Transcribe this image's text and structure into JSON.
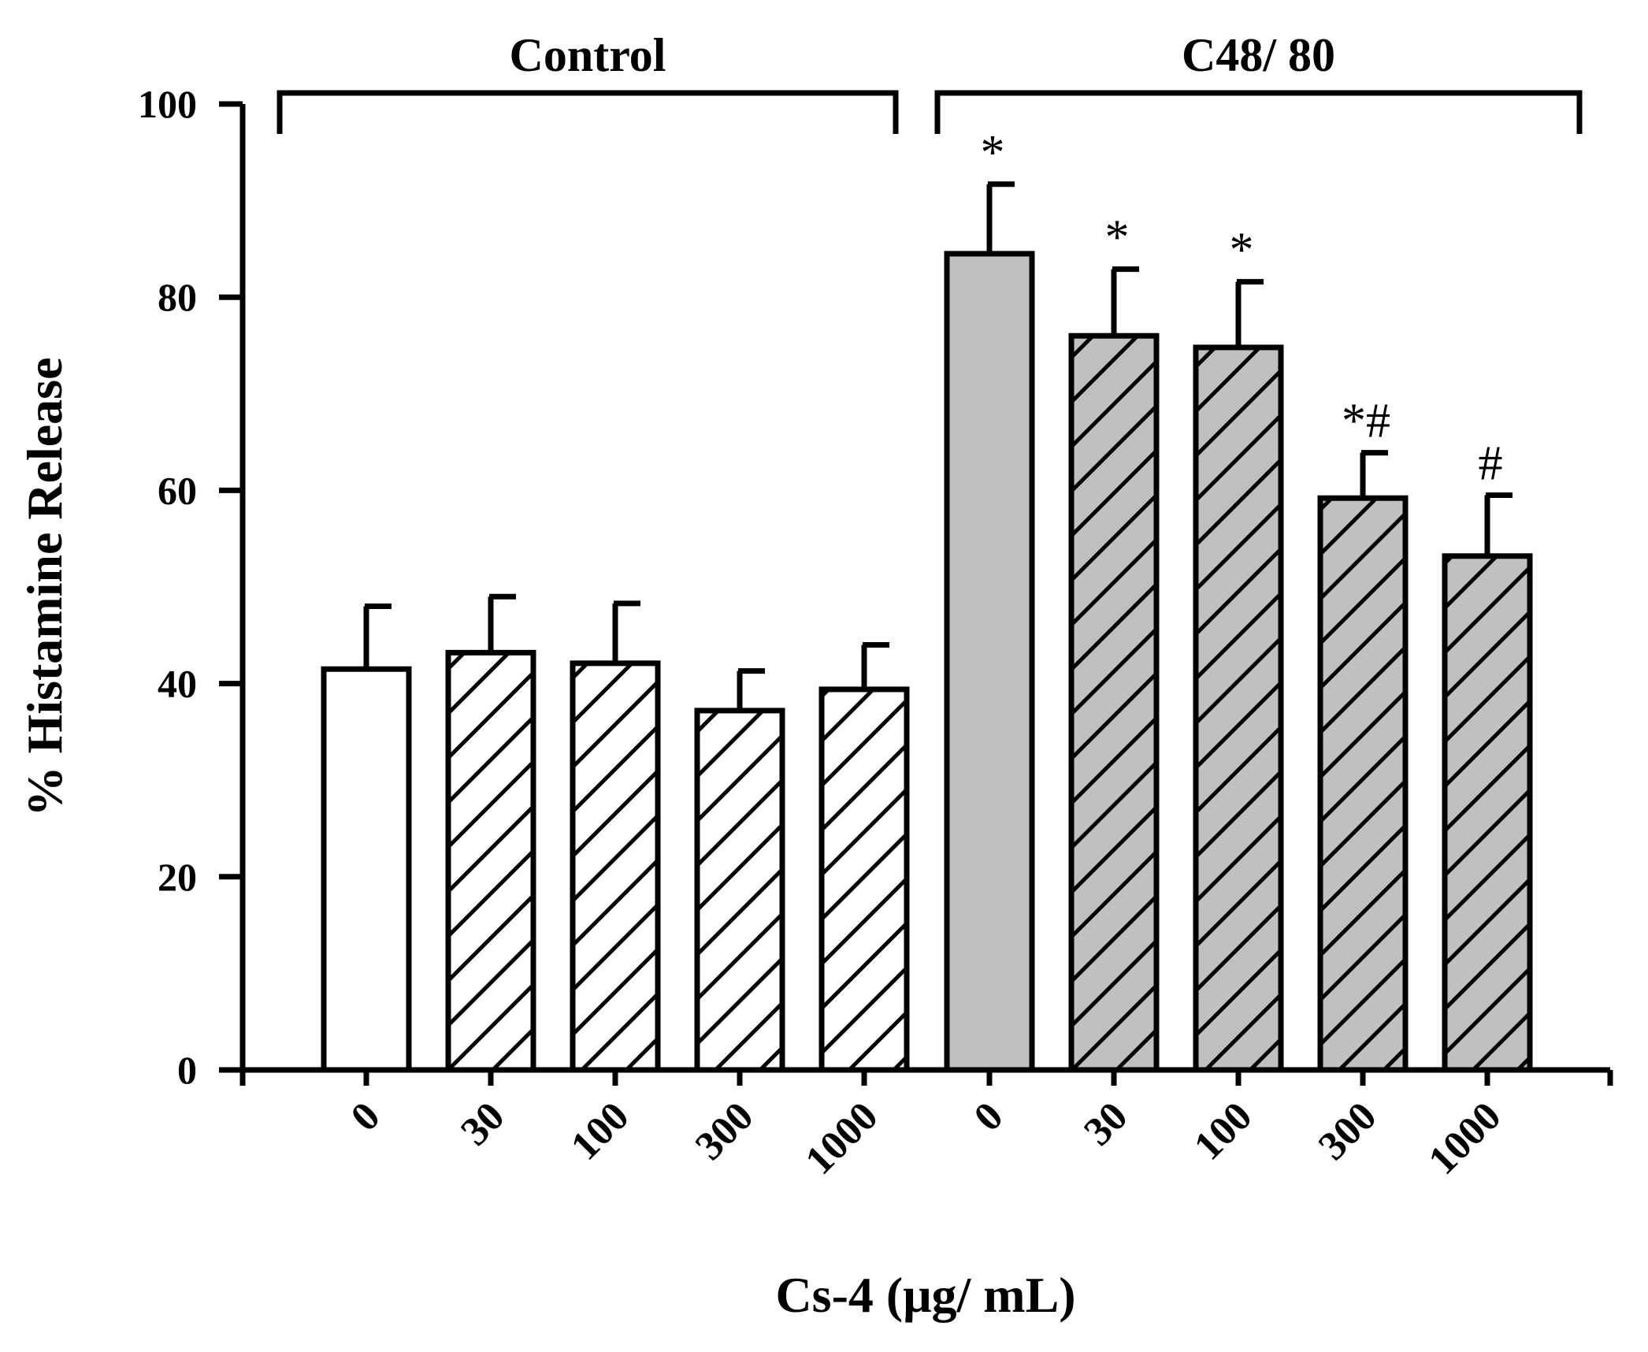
{
  "chart_data": {
    "type": "bar",
    "title": "",
    "xlabel": "Cs-4 (μg/ mL)",
    "ylabel": "% Histamine Release",
    "ylim": [
      0,
      100
    ],
    "yticks": [
      "0",
      "20",
      "40",
      "60",
      "80",
      "100"
    ],
    "groups": [
      {
        "label": "Control",
        "bar_indices": [
          0,
          1,
          2,
          3,
          4
        ]
      },
      {
        "label": "C48/ 80",
        "bar_indices": [
          5,
          6,
          7,
          8,
          9
        ]
      }
    ],
    "categories": [
      "0",
      "30",
      "100",
      "300",
      "1000",
      "0",
      "30",
      "100",
      "300",
      "1000"
    ],
    "values": [
      41.5,
      43.2,
      42.1,
      37.2,
      39.4,
      84.5,
      76.0,
      74.8,
      59.2,
      53.2
    ],
    "errors": [
      6.5,
      5.8,
      6.2,
      4.1,
      4.6,
      7.2,
      6.9,
      6.8,
      4.7,
      6.3
    ],
    "fills": [
      "white",
      "hatch-white",
      "hatch-white",
      "hatch-white",
      "hatch-white",
      "gray",
      "hatch-gray",
      "hatch-gray",
      "hatch-gray",
      "hatch-gray"
    ],
    "significance": [
      "",
      "",
      "",
      "",
      "",
      "*",
      "*",
      "*",
      "*#",
      "#"
    ],
    "colors": {
      "gray_fill": "#c0c0c0",
      "white_fill": "#ffffff",
      "stroke": "#000000"
    }
  }
}
